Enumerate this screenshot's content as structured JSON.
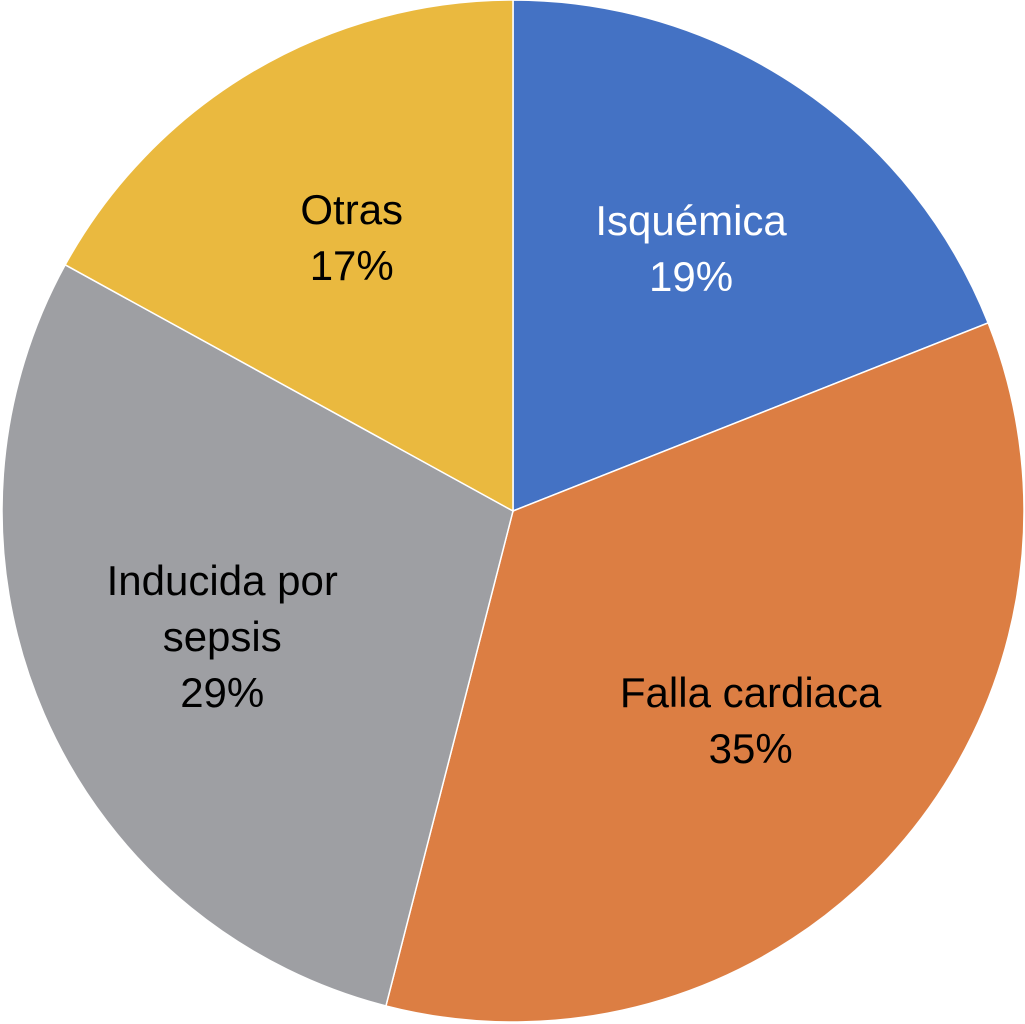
{
  "chart_data": {
    "type": "pie",
    "categories": [
      "Isquémica",
      "Falla cardiaca",
      "Inducida por sepsis",
      "Otras"
    ],
    "values": [
      19,
      35,
      29,
      17
    ],
    "value_labels": [
      "19%",
      "35%",
      "29%",
      "17%"
    ],
    "colors": [
      "#4472c4",
      "#dc7e43",
      "#9e9fa3",
      "#eab93f"
    ]
  }
}
